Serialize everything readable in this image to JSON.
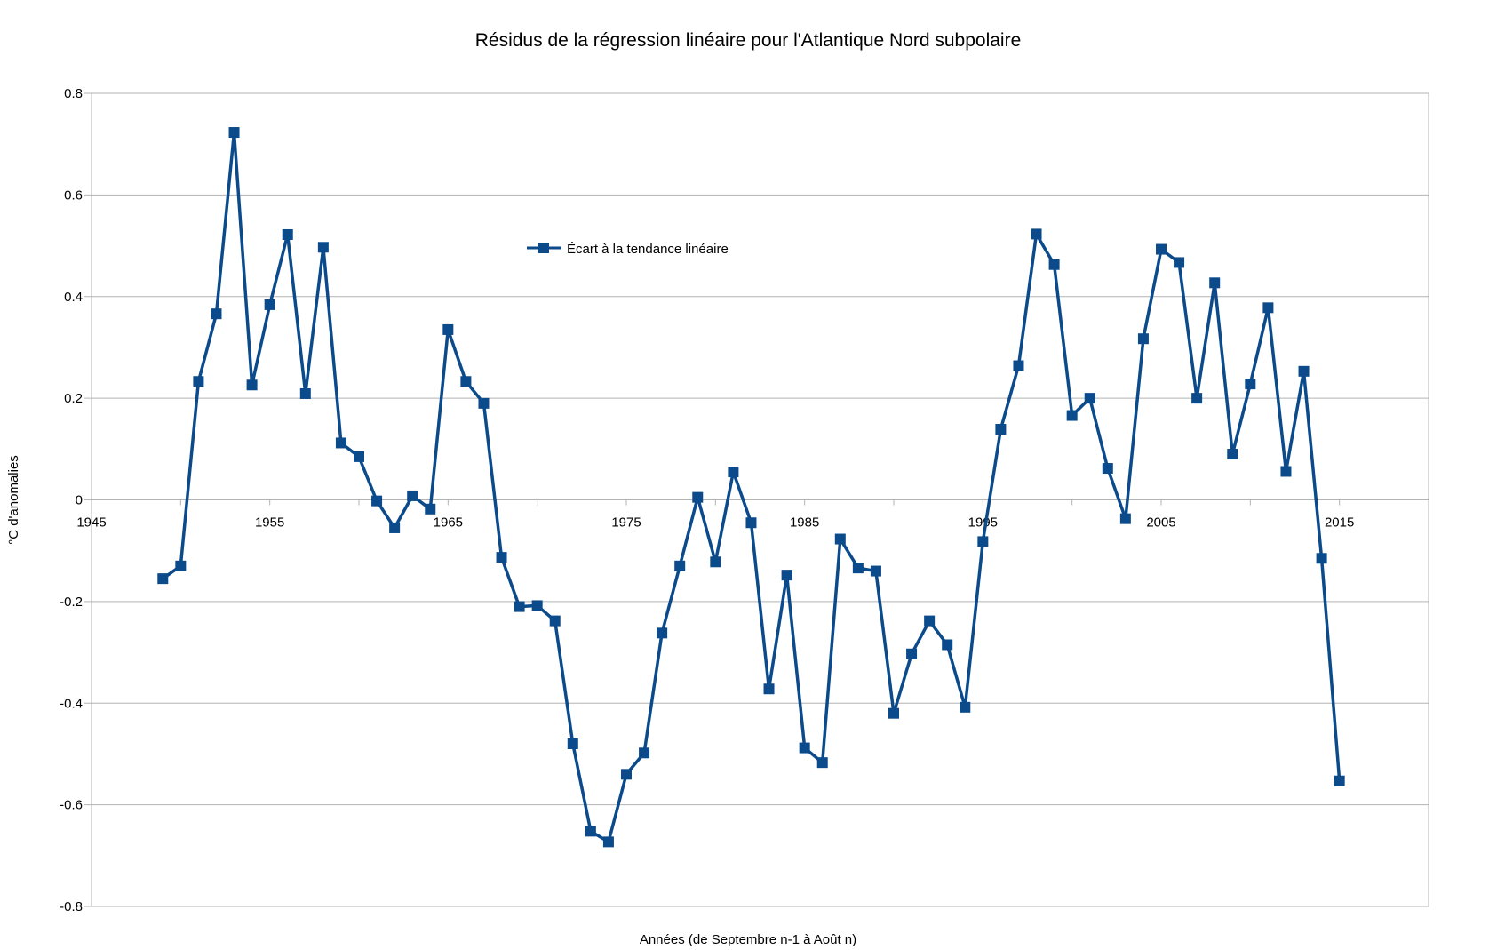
{
  "chart_data": {
    "type": "line",
    "title": "Résidus de la régression linéaire pour l'Atlantique Nord subpolaire",
    "xlabel": "Années (de Septembre n-1 à Août n)",
    "ylabel": "°C d'anomalies",
    "xlim": [
      1945,
      2020
    ],
    "ylim": [
      -0.8,
      0.8
    ],
    "xticks": [
      1945,
      1955,
      1965,
      1975,
      1985,
      1995,
      2005,
      2015
    ],
    "yticks": [
      -0.8,
      -0.6,
      -0.4,
      -0.2,
      0,
      0.2,
      0.4,
      0.6,
      0.8
    ],
    "xtick_labels": [
      "1945",
      "1955",
      "1965",
      "1975",
      "1985",
      "1995",
      "2005",
      "2015"
    ],
    "ytick_labels": [
      "-0.8",
      "-0.6",
      "-0.4",
      "-0.2",
      "0",
      "0.2",
      "0.4",
      "0.6",
      "0.8"
    ],
    "grid": true,
    "legend_position": "upper-center",
    "series": [
      {
        "name": "Écart à la tendance linéaire",
        "color": "#0b4a8b",
        "marker": "square",
        "x": [
          1949,
          1950,
          1951,
          1952,
          1953,
          1954,
          1955,
          1956,
          1957,
          1958,
          1959,
          1960,
          1961,
          1962,
          1963,
          1964,
          1965,
          1966,
          1967,
          1968,
          1969,
          1970,
          1971,
          1972,
          1973,
          1974,
          1975,
          1976,
          1977,
          1978,
          1979,
          1980,
          1981,
          1982,
          1983,
          1984,
          1985,
          1986,
          1987,
          1988,
          1989,
          1990,
          1991,
          1992,
          1993,
          1994,
          1995,
          1996,
          1997,
          1998,
          1999,
          2000,
          2001,
          2002,
          2003,
          2004,
          2005,
          2006,
          2007,
          2008,
          2009,
          2010,
          2011,
          2012,
          2013,
          2014,
          2015
        ],
        "y": [
          -0.155,
          -0.13,
          0.233,
          0.366,
          0.723,
          0.226,
          0.384,
          0.522,
          0.209,
          0.497,
          0.112,
          0.085,
          -0.002,
          -0.055,
          0.008,
          -0.018,
          0.335,
          0.233,
          0.19,
          -0.113,
          -0.21,
          -0.208,
          -0.238,
          -0.48,
          -0.652,
          -0.673,
          -0.54,
          -0.498,
          -0.262,
          -0.13,
          0.005,
          -0.122,
          0.055,
          -0.045,
          -0.372,
          -0.148,
          -0.488,
          -0.517,
          -0.077,
          -0.134,
          -0.14,
          -0.42,
          -0.303,
          -0.238,
          -0.285,
          -0.408,
          -0.082,
          0.139,
          0.264,
          0.523,
          0.463,
          0.166,
          0.2,
          0.062,
          -0.037,
          0.317,
          0.493,
          0.467,
          0.2,
          0.427,
          0.09,
          0.228,
          0.378,
          0.056,
          0.253,
          -0.115,
          -0.553
        ]
      }
    ]
  }
}
